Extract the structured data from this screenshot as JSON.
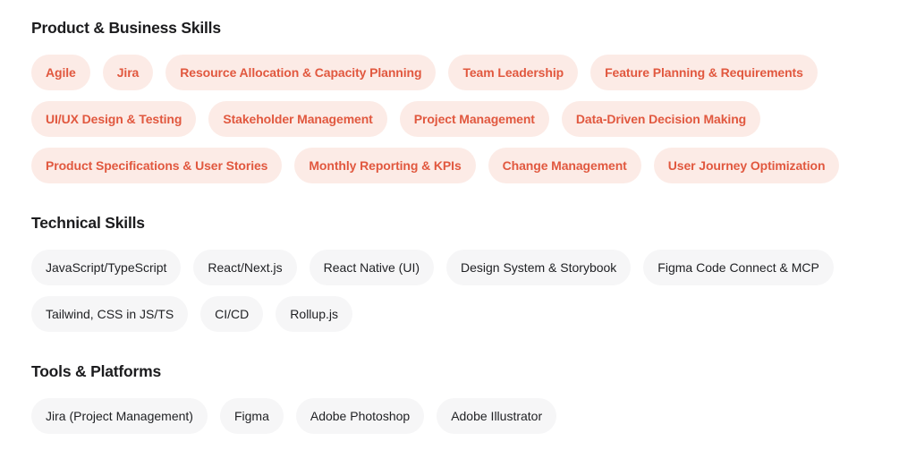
{
  "page": {
    "background_color": "#ffffff"
  },
  "colors": {
    "heading_text": "#1c1c1e",
    "accent_pill_background": "#fcebe6",
    "accent_pill_text": "#e1583f",
    "neutral_pill_background": "#f6f6f7",
    "neutral_pill_text": "#1f2023"
  },
  "sections": [
    {
      "id": "product-business-skills",
      "title": "Product & Business Skills",
      "variant": "accent",
      "skills": [
        "Agile",
        "Jira",
        "Resource Allocation & Capacity Planning",
        "Team Leadership",
        "Feature Planning & Requirements",
        "UI/UX Design & Testing",
        "Stakeholder Management",
        "Project Management",
        "Data-Driven Decision Making",
        "Product Specifications & User Stories",
        "Monthly Reporting & KPIs",
        "Change Management",
        "User Journey Optimization"
      ]
    },
    {
      "id": "technical-skills",
      "title": "Technical Skills",
      "variant": "neutral",
      "skills": [
        "JavaScript/TypeScript",
        "React/Next.js",
        "React Native (UI)",
        "Design System & Storybook",
        "Figma Code Connect & MCP",
        "Tailwind, CSS in JS/TS",
        "CI/CD",
        "Rollup.js"
      ]
    },
    {
      "id": "tools-platforms",
      "title": "Tools & Platforms",
      "variant": "neutral",
      "skills": [
        "Jira (Project Management)",
        "Figma",
        "Adobe Photoshop",
        "Adobe Illustrator"
      ]
    }
  ]
}
